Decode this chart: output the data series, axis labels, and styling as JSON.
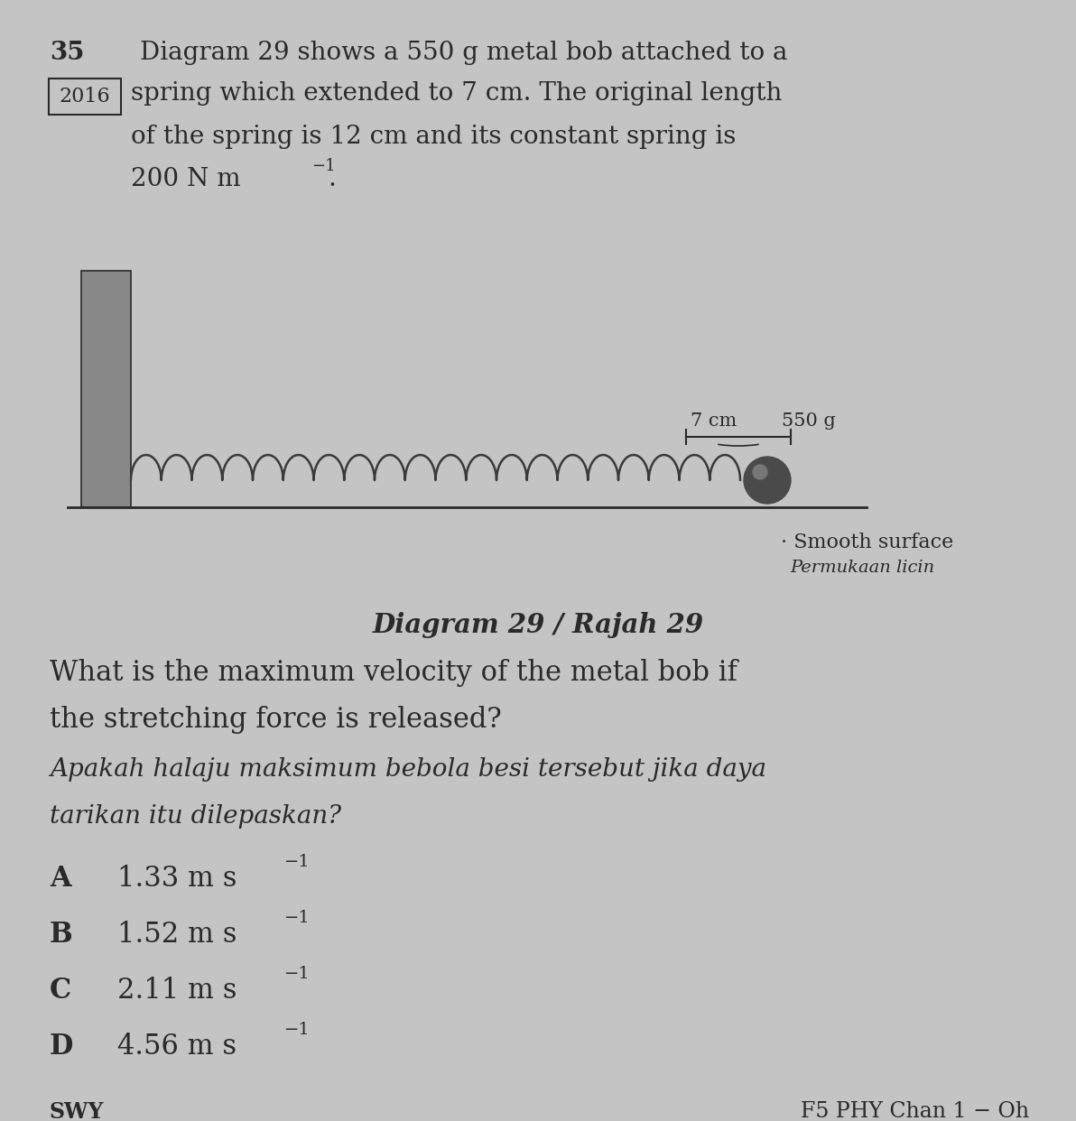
{
  "bg_color": "#c4c4c4",
  "question_number": "35",
  "year_box": "2016",
  "line1": "Diagram 29 shows a 550 g metal bob attached to a",
  "line2": "spring which extended to 7 cm. The original length",
  "line3": "of the spring is 12 cm and its constant spring is",
  "line4_main": "200 N m",
  "line4_sup": "−1",
  "line4_end": ".",
  "diagram_label_roman": "Diagram 29 / ",
  "diagram_label_italic": "Rajah 29",
  "label_7cm": "7 cm",
  "label_550g": "550 g",
  "surface_label1": "Smooth surface",
  "surface_label2": "Permukaan licin",
  "question_en1": "What is the maximum velocity of the metal bob if",
  "question_en2": "the stretching force is released?",
  "question_ms1": "Apakah halaju maksimum bebola besi tersebut jika daya",
  "question_ms2": "tarikan itu dilepaskan?",
  "options": [
    {
      "label": "A",
      "value": "1.33 m s",
      "sup": "−1"
    },
    {
      "label": "B",
      "value": "1.52 m s",
      "sup": "−1"
    },
    {
      "label": "C",
      "value": "2.11 m s",
      "sup": "−1"
    },
    {
      "label": "D",
      "value": "4.56 m s",
      "sup": "−1"
    }
  ],
  "footer_left": "SWY",
  "footer_right": "F5 PHY Chan 1 − Oh",
  "text_color": "#2a2a2a",
  "wall_fill": "#888888",
  "spring_color": "#3a3a3a",
  "bob_color": "#4a4a4a",
  "bob_highlight": "#777777",
  "line_color": "#2a2a2a"
}
